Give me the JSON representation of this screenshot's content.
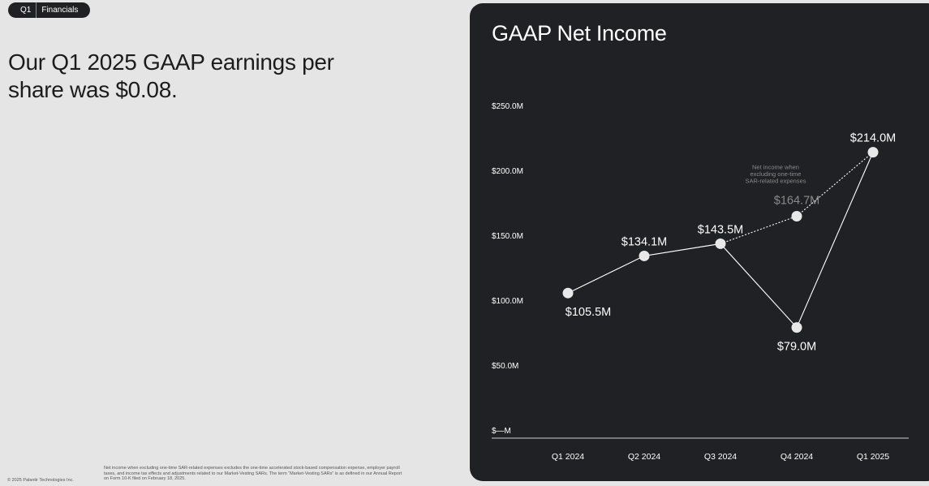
{
  "header": {
    "tag_left": "Q1",
    "tag_right": "Financials"
  },
  "headline": "Our Q1 2025 GAAP earnings per share was $0.08.",
  "footer": {
    "copyright": "© 2025 Palantir Technologies Inc.",
    "footnote": "Net income when excluding one-time SAR-related expenses excludes the one-time accelerated stock-based compensation expense, employer payroll taxes, and income tax effects and adjustments related to our Market-Vesting SARs. The term “Market-Vesting SARs” is as defined in our Annual Report on Form 10-K filed on February 18, 2025."
  },
  "colors": {
    "page_bg": "#e5e5e5",
    "panel_bg": "#1f2124",
    "line": "#ffffff",
    "point": "#e8e8e8",
    "muted_text": "#8a8a8a"
  },
  "chart_data": {
    "type": "line",
    "title": "GAAP Net Income",
    "categories": [
      "Q1 2024",
      "Q2 2024",
      "Q3 2024",
      "Q4 2024",
      "Q1 2025"
    ],
    "y_ticks": [
      "$250.0M",
      "$200.0M",
      "$150.0M",
      "$100.0M",
      "$50.0M",
      "$—M"
    ],
    "ylim": [
      0,
      250
    ],
    "series": [
      {
        "values": [
          105.5,
          134.1,
          143.5,
          79.0,
          214.0
        ],
        "labels": [
          "$105.5M",
          "$134.1M",
          "$143.5M",
          "$79.0M",
          "$214.0M"
        ],
        "style": "solid"
      },
      {
        "x": [
          "Q3 2024",
          "Q4 2024",
          "Q1 2025"
        ],
        "values": [
          143.5,
          164.7,
          214.0
        ],
        "labels": [
          "",
          "$164.7M",
          ""
        ],
        "style": "dotted"
      }
    ],
    "annotation": {
      "category": "Q4 2024",
      "text": [
        "Net income when",
        "excluding one-time",
        "SAR-related expenses"
      ]
    }
  }
}
